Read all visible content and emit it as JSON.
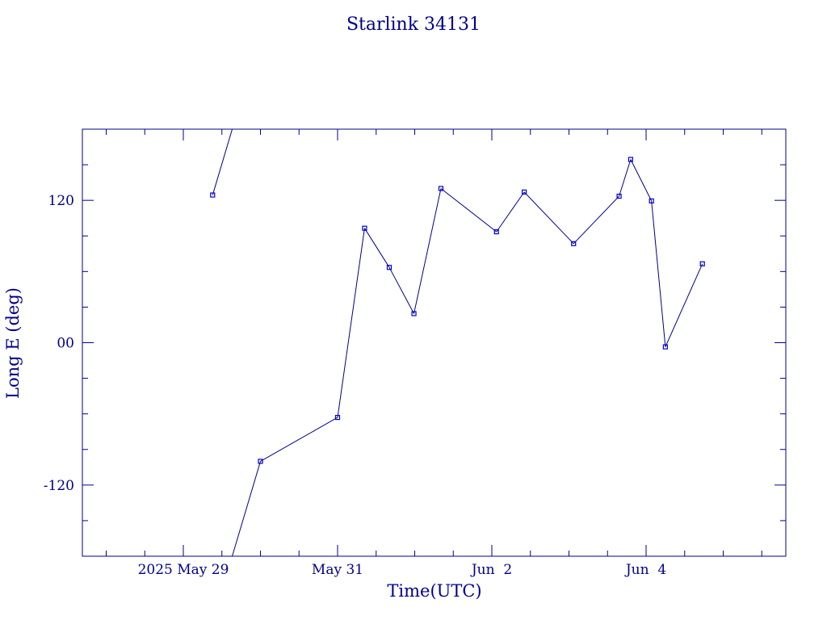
{
  "chart_data": {
    "type": "line",
    "title": "Starlink 34131",
    "xlabel": "Time(UTC)",
    "ylabel": "Long E (deg)",
    "x_tick_labels": [
      {
        "text": "2025 May 29",
        "day": 0
      },
      {
        "text": "May 31",
        "day": 2
      },
      {
        "text": "Jun  2",
        "day": 4
      },
      {
        "text": "Jun  4",
        "day": 6
      }
    ],
    "y_tick_labels": [
      {
        "text": "120",
        "value": 120
      },
      {
        "text": "00",
        "value": 0
      },
      {
        "text": "-120",
        "value": -120
      }
    ],
    "xlim_days": [
      -0.8,
      8.3
    ],
    "ylim": [
      -180,
      180
    ],
    "x_minor_step_days": 0.5,
    "y_minor_step": 30,
    "series": [
      {
        "values_day_lon": [
          [
            0.38,
            124.5
          ],
          [
            1.0,
            -100
          ],
          [
            2.0,
            -63
          ],
          [
            2.35,
            96.5
          ],
          [
            2.67,
            63.5
          ],
          [
            2.99,
            24.5
          ],
          [
            3.34,
            130
          ],
          [
            4.06,
            93.5
          ],
          [
            4.42,
            127
          ],
          [
            5.06,
            83.5
          ],
          [
            5.65,
            123.5
          ],
          [
            5.8,
            154.5
          ],
          [
            6.07,
            119.5
          ],
          [
            6.25,
            -3.5
          ],
          [
            6.73,
            66.5
          ]
        ]
      }
    ],
    "wrap_segment": {
      "from": [
        0.38,
        124.5
      ],
      "to": [
        1.0,
        -100
      ],
      "lon_wrapped": [
        124.5,
        260
      ]
    }
  },
  "colors": {
    "axes": "#00008b",
    "line": "#00008b",
    "marker": "#0000cd"
  }
}
